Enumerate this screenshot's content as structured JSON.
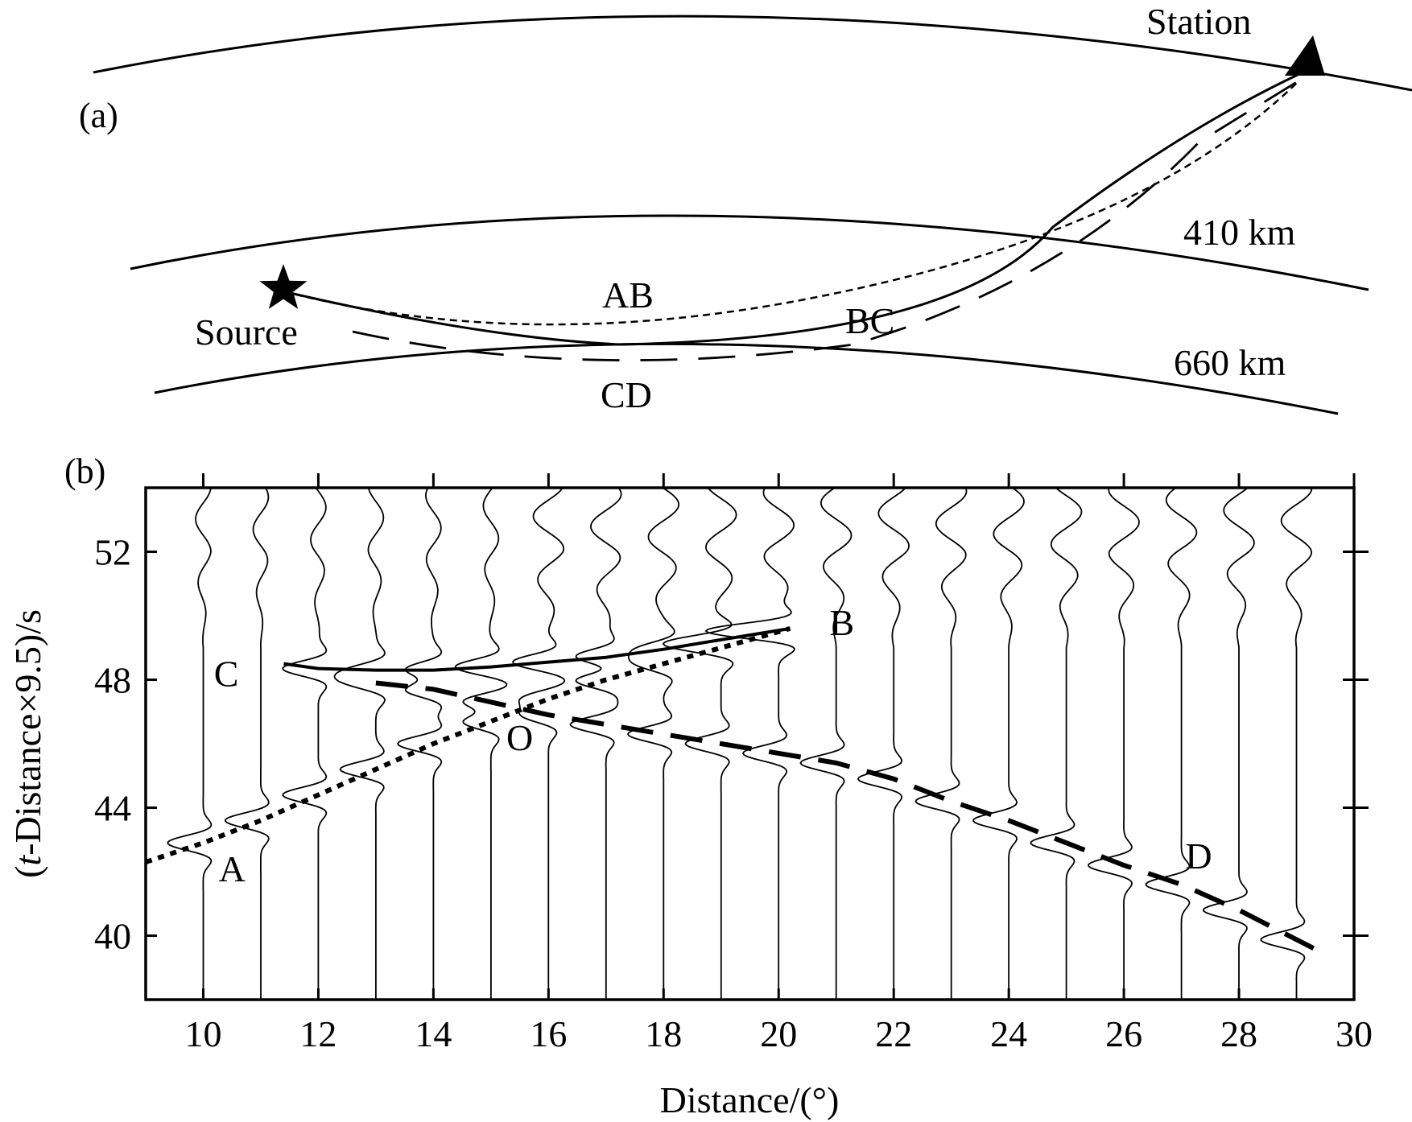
{
  "panel_a": {
    "label": "(a)",
    "station_label": "Station",
    "source_label": "Source",
    "layer_410_label": "410 km",
    "layer_660_label": "660 km",
    "branch_ab": "AB",
    "branch_bc": "BC",
    "branch_cd": "CD"
  },
  "chart_data": {
    "type": "line",
    "panel_label": "(b)",
    "xlabel": "Distance/(°)",
    "ylabel": "(t-Distance×9.5)/s",
    "ylabel_italic": "t",
    "xlim": [
      9,
      30
    ],
    "ylim": [
      38,
      54
    ],
    "xticks": [
      10,
      12,
      14,
      16,
      18,
      20,
      22,
      24,
      26,
      28,
      30
    ],
    "yticks": [
      40,
      44,
      48,
      52
    ],
    "trace_distances": [
      10,
      11,
      12,
      13,
      14,
      15,
      16,
      17,
      18,
      19,
      20,
      21,
      22,
      23,
      24,
      25,
      26,
      27,
      28,
      29
    ],
    "branches": [
      {
        "name": "AB",
        "style": "dotted",
        "x": [
          9.0,
          10.0,
          11.0,
          12.0,
          13.0,
          14.0,
          15.0,
          16.0,
          17.0,
          18.0,
          19.0,
          20.2
        ],
        "y": [
          42.3,
          42.9,
          43.6,
          44.4,
          45.2,
          46.0,
          46.7,
          47.4,
          48.0,
          48.5,
          49.0,
          49.6
        ]
      },
      {
        "name": "CB",
        "style": "solid",
        "x": [
          11.4,
          12.0,
          13.0,
          14.0,
          15.0,
          16.0,
          17.0,
          18.0,
          19.0,
          20.2
        ],
        "y": [
          48.5,
          48.35,
          48.3,
          48.3,
          48.4,
          48.55,
          48.7,
          48.95,
          49.25,
          49.6
        ]
      },
      {
        "name": "CD",
        "style": "dashed",
        "x": [
          13.0,
          14.0,
          15.0,
          16.0,
          17.0,
          18.0,
          19.0,
          20.0,
          21.0,
          22.0,
          23.0,
          24.0,
          25.0,
          26.0,
          27.0,
          28.0,
          29.3
        ],
        "y": [
          47.9,
          47.7,
          47.3,
          46.9,
          46.6,
          46.3,
          46.0,
          45.7,
          45.4,
          44.9,
          44.2,
          43.6,
          42.9,
          42.2,
          41.6,
          40.8,
          39.6
        ]
      }
    ],
    "annotations": [
      {
        "text": "A",
        "x": 10.5,
        "y": 42.1
      },
      {
        "text": "B",
        "x": 21.1,
        "y": 49.8
      },
      {
        "text": "C",
        "x": 10.4,
        "y": 48.2
      },
      {
        "text": "D",
        "x": 27.3,
        "y": 42.5
      },
      {
        "text": "O",
        "x": 15.5,
        "y": 46.2
      }
    ]
  }
}
